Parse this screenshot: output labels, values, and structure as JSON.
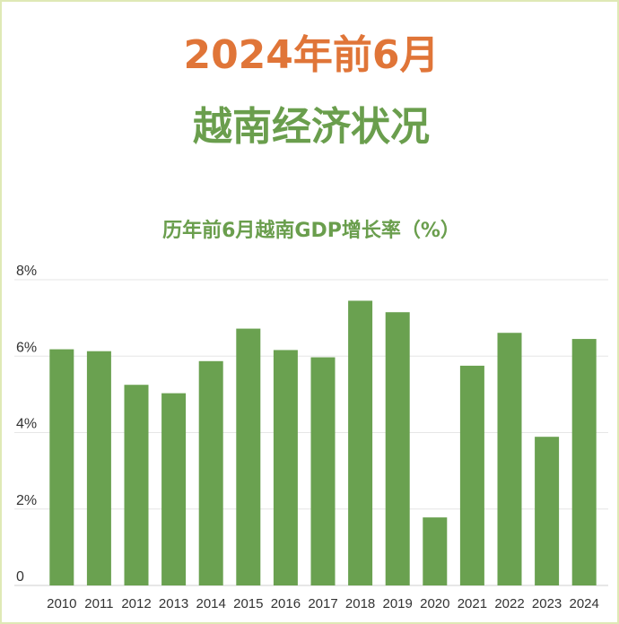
{
  "header": {
    "title_line1": "2024年前6月",
    "title_line2": "越南经济状况"
  },
  "colors": {
    "title_orange": "#e07538",
    "title_green": "#6a9e4d",
    "bar": "#6aa150",
    "grid": "#e6e6e6",
    "border": "#dfe9b6"
  },
  "chart_data": {
    "type": "bar",
    "title": "历年前6月越南GDP增长率（%）",
    "categories": [
      "2010",
      "2011",
      "2012",
      "2013",
      "2014",
      "2015",
      "2016",
      "2017",
      "2018",
      "2019",
      "2020",
      "2021",
      "2022",
      "2023",
      "2024"
    ],
    "values": [
      6.18,
      6.13,
      5.25,
      5.03,
      5.87,
      6.72,
      6.16,
      5.97,
      7.45,
      7.15,
      1.78,
      5.75,
      6.61,
      3.89,
      6.45
    ],
    "ylim": [
      0,
      8
    ],
    "yticks": [
      0,
      2,
      4,
      6,
      8
    ],
    "ytick_labels": [
      "0",
      "2%",
      "4%",
      "6%",
      "8%"
    ],
    "xlabel": "",
    "ylabel": "",
    "grid": true,
    "legend": "none"
  }
}
